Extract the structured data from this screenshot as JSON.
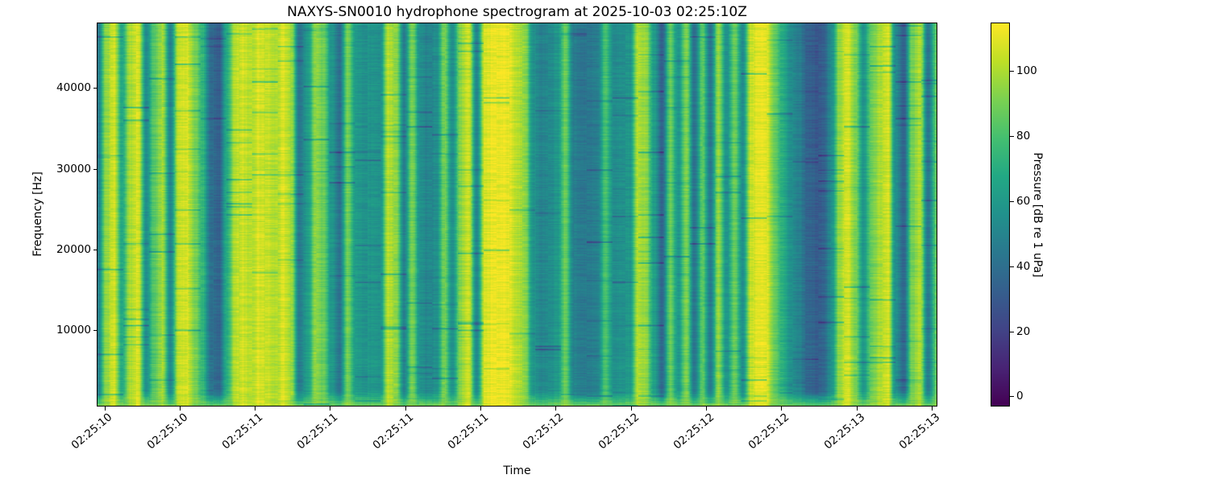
{
  "figure": {
    "background": "#ffffff",
    "text_color": "#000000"
  },
  "chart_data": {
    "type": "heatmap",
    "title": "NAXYS-SN0010 hydrophone spectrogram at 2025-10-03 02:25:10Z",
    "xlabel": "Time",
    "ylabel": "Frequency [Hz]",
    "colorbar_label": "Pressure [dB re 1 uPa]",
    "colormap": "viridis",
    "grid": false,
    "x_tick_labels": [
      "02:25:10",
      "02:25:10",
      "02:25:11",
      "02:25:11",
      "02:25:11",
      "02:25:11",
      "02:25:12",
      "02:25:12",
      "02:25:12",
      "02:25:12",
      "02:25:13",
      "02:25:13"
    ],
    "y_ticks": [
      10000,
      20000,
      30000,
      40000
    ],
    "ylim": [
      630,
      48170
    ],
    "colorbar_ticks": [
      0,
      20,
      40,
      60,
      80,
      100
    ],
    "clim": [
      -3,
      115
    ],
    "colormap_stops": [
      [
        0.0,
        "#440154"
      ],
      [
        0.1,
        "#482475"
      ],
      [
        0.2,
        "#414487"
      ],
      [
        0.3,
        "#355f8d"
      ],
      [
        0.4,
        "#2a788e"
      ],
      [
        0.5,
        "#21918c"
      ],
      [
        0.6,
        "#22a884"
      ],
      [
        0.7,
        "#44bf70"
      ],
      [
        0.8,
        "#7ad151"
      ],
      [
        0.9,
        "#bddf26"
      ],
      [
        1.0,
        "#fde725"
      ]
    ],
    "columns_db_note": "Broadband column intensity profile in dB re 1 uPa, sampled at 105 uniform time steps across the plot; spectrogram is dominated by vertical (broadband) stripes.",
    "columns_db": [
      48,
      95,
      107,
      68,
      100,
      108,
      55,
      85,
      98,
      52,
      105,
      108,
      92,
      75,
      42,
      36,
      70,
      102,
      106,
      102,
      108,
      105,
      100,
      108,
      98,
      45,
      62,
      95,
      88,
      60,
      44,
      90,
      62,
      58,
      60,
      58,
      102,
      96,
      50,
      92,
      56,
      52,
      56,
      90,
      56,
      95,
      106,
      52,
      108,
      112,
      112,
      110,
      102,
      95,
      58,
      52,
      55,
      60,
      88,
      50,
      45,
      47,
      50,
      82,
      56,
      58,
      60,
      100,
      96,
      64,
      38,
      88,
      60,
      92,
      44,
      85,
      46,
      96,
      58,
      88,
      56,
      105,
      111,
      108,
      86,
      70,
      56,
      50,
      38,
      34,
      36,
      56,
      96,
      108,
      90,
      60,
      88,
      100,
      108,
      56,
      38,
      90,
      100,
      46,
      85
    ]
  }
}
